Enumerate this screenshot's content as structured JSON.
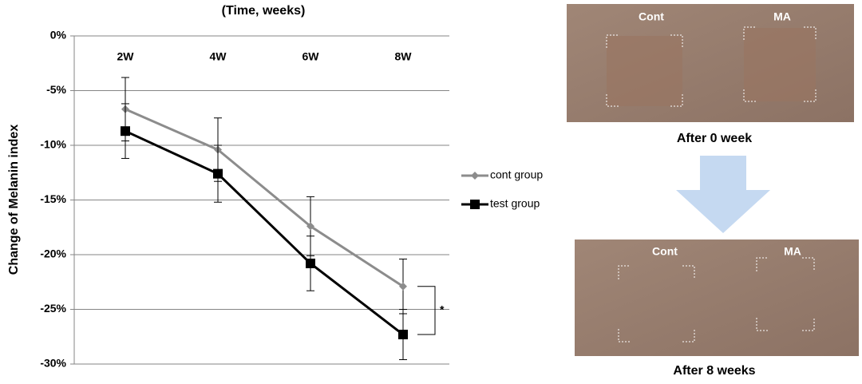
{
  "chart_data": {
    "type": "line",
    "title": "(Time, weeks)",
    "y_label": "Change of Melanin index",
    "categories": [
      "2W",
      "4W",
      "6W",
      "8W"
    ],
    "series": [
      {
        "name": "cont group",
        "color": "#8c8c8c",
        "marker": "diamond",
        "values": [
          -6.7,
          -10.4,
          -17.4,
          -22.9
        ],
        "errors": [
          2.9,
          2.9,
          2.7,
          2.5
        ]
      },
      {
        "name": "test group",
        "color": "#000000",
        "marker": "square",
        "values": [
          -8.7,
          -12.6,
          -20.8,
          -27.3
        ],
        "errors": [
          2.5,
          2.6,
          2.5,
          2.3
        ]
      }
    ],
    "ylim": [
      -30,
      0
    ],
    "yticks": [
      {
        "value": 0,
        "label": "0%"
      },
      {
        "value": -5,
        "label": "-5%"
      },
      {
        "value": -10,
        "label": "-10%"
      },
      {
        "value": -15,
        "label": "-15%"
      },
      {
        "value": -20,
        "label": "-20%"
      },
      {
        "value": -25,
        "label": "-25%"
      },
      {
        "value": -30,
        "label": "-30%"
      }
    ],
    "grid": true,
    "legend": "right",
    "significance": "*"
  },
  "photos": [
    {
      "labels": [
        "Cont",
        "MA"
      ],
      "caption": "After 0 week"
    },
    {
      "labels": [
        "Cont",
        "MA"
      ],
      "caption": "After 8 weeks"
    }
  ]
}
